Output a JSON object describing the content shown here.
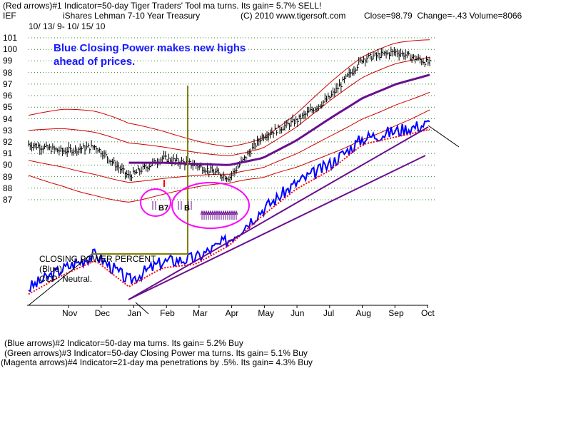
{
  "header": {
    "line1": "(Red arrows)#1 Indicator=50-day Tiger Traders' Tool ma turns. Its gain= 5.7% SELL!",
    "ticker": "IEF",
    "name": "iShares Lehman 7-10 Year Treasury",
    "copyright": "(C) 2010 www.tigersoft.com",
    "close_label": "Close=",
    "close_value": "98.79",
    "change_label": "Change=",
    "change_value": "-.43",
    "volume_label": "Volume=",
    "volume_value": "8066",
    "date_range": "10/ 13/ 9- 10/ 15/ 10"
  },
  "annotation": {
    "line1": "Blue Closing Power makes new highs",
    "line2": "ahead of prices."
  },
  "closing_power": {
    "title": "CLOSING POWER PERCENT",
    "series_label": "(Blue)",
    "status": "CCP: Neutral."
  },
  "markers": {
    "b7": "B7",
    "b": "B"
  },
  "footer": {
    "line2": "(Blue arrows)#2 Indicator=50-day ma turns. Its gain= 5.2% Buy",
    "line3": "(Green arrows)#3 Indicator=50-day Closing Power ma turns. Its gain= 5.1% Buy",
    "line4": "(Magenta arrows)#4 Indicator=21-day ma penetrations by .5%. Its gain= 4.3% Buy"
  },
  "colors": {
    "price_bars": "#000000",
    "closing_power": "#0000ff",
    "ma": "#ff0000",
    "bands": "#d00000",
    "trendline": "#6a0f8e",
    "circle": "#ff00ff",
    "vertical_line": "#808000"
  },
  "chart_data": {
    "type": "line",
    "title": "iShares Lehman 7-10 Year Treasury",
    "yticks": [
      101,
      100,
      99,
      98,
      97,
      96,
      95,
      94,
      93,
      92,
      91,
      90,
      89,
      88,
      87
    ],
    "ylim": [
      87,
      101
    ],
    "x_months": [
      "Nov",
      "Dec",
      "Jan",
      "Feb",
      "Mar",
      "Apr",
      "May",
      "Jun",
      "Jul",
      "Aug",
      "Sep",
      "Oct"
    ],
    "grid": true,
    "x": [
      "Oct",
      "Nov",
      "Dec",
      "Jan",
      "Feb",
      "Mar",
      "Apr",
      "May",
      "Jun",
      "Jul",
      "Aug",
      "Sep",
      "Oct"
    ],
    "series": [
      {
        "name": "Price",
        "values": [
          91.8,
          91.2,
          91.6,
          89.0,
          90.6,
          90.0,
          88.9,
          92.5,
          93.8,
          95.8,
          99.2,
          99.8,
          98.8
        ]
      },
      {
        "name": "50-day ma",
        "values": [
          91.7,
          91.5,
          91.0,
          90.2,
          90.2,
          90.1,
          90.0,
          90.6,
          92.1,
          94.0,
          95.8,
          97.0,
          97.8
        ]
      }
    ]
  }
}
